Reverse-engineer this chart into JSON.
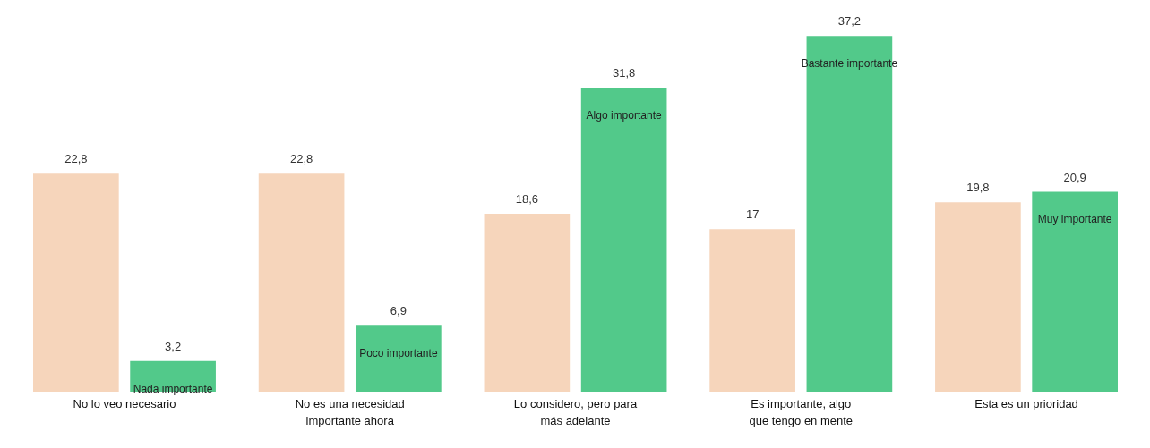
{
  "chart_data": {
    "type": "bar",
    "categories": [
      "No lo veo necesario",
      "No es una necesidad\nimportante ahora",
      "Lo considero, pero para\nmás adelante",
      "Es importante, algo\nque tengo en mente",
      "Esta es un prioridad"
    ],
    "series": [
      {
        "color": "#f6d5bb",
        "values": [
          22.8,
          22.8,
          18.6,
          17,
          19.8
        ],
        "value_labels": [
          "22,8",
          "22,8",
          "18,6",
          "17",
          "19,8"
        ]
      },
      {
        "color": "#52c98a",
        "values": [
          3.2,
          6.9,
          31.8,
          37.2,
          20.9
        ],
        "value_labels": [
          "3,2",
          "6,9",
          "31,8",
          "37,2",
          "20,9"
        ]
      }
    ],
    "annotations": [
      "Nada importante",
      "Poco importante",
      "Algo importante",
      "Bastante importante",
      "Muy importante"
    ]
  }
}
